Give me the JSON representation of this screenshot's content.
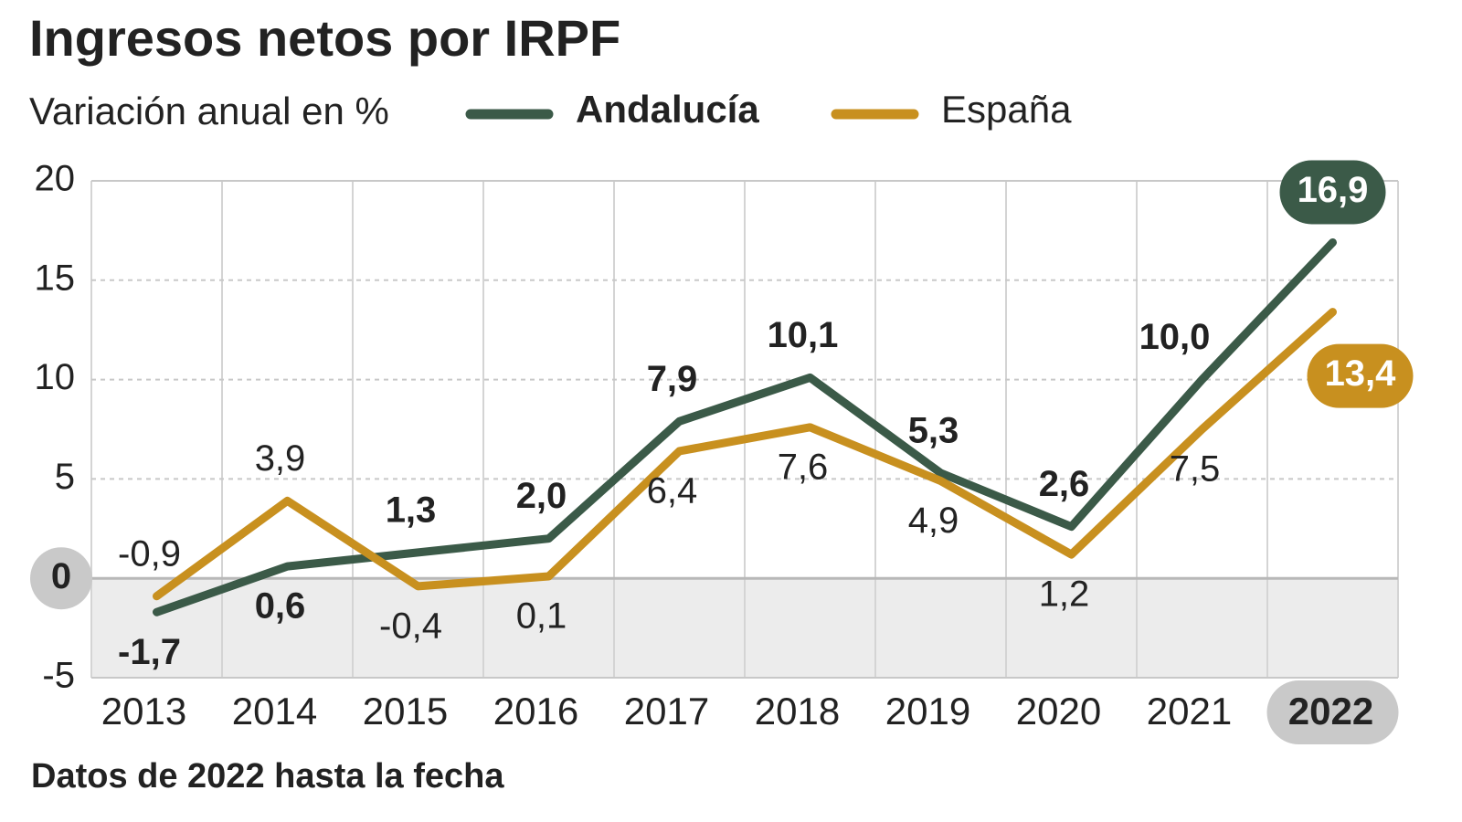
{
  "chart_data": {
    "type": "line",
    "title": "Ingresos netos por IRPF",
    "subtitle": "Variación anual en %",
    "note": "Datos de 2022 hasta la fecha",
    "categories": [
      "2013",
      "2014",
      "2015",
      "2016",
      "2017",
      "2018",
      "2019",
      "2020",
      "2021",
      "2022"
    ],
    "series": [
      {
        "name": "Andalucía",
        "color": "#3b5a48",
        "values": [
          -1.7,
          0.6,
          1.3,
          2.0,
          7.9,
          10.1,
          5.3,
          2.6,
          10.0,
          16.9
        ],
        "value_labels": [
          "-1,7",
          "0,6",
          "1,3",
          "2,0",
          "7,9",
          "10,1",
          "5,3",
          "2,6",
          "10,0",
          "16,9"
        ]
      },
      {
        "name": "España",
        "color": "#c8901f",
        "values": [
          -0.9,
          3.9,
          -0.4,
          0.1,
          6.4,
          7.6,
          4.9,
          1.2,
          7.5,
          13.4
        ],
        "value_labels": [
          "-0,9",
          "3,9",
          "-0,4",
          "0,1",
          "6,4",
          "7,6",
          "4,9",
          "1,2",
          "7,5",
          "13,4"
        ]
      }
    ],
    "ylim": [
      -5,
      20
    ],
    "yticks": [
      -5,
      0,
      5,
      10,
      15,
      20
    ],
    "grid": true
  }
}
